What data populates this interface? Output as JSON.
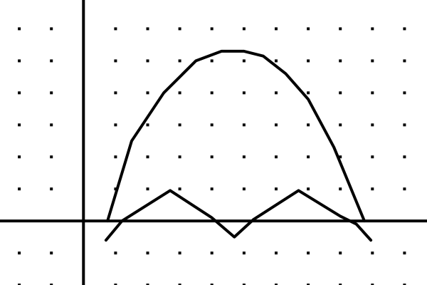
{
  "chart_data": {
    "type": "line",
    "title": "",
    "xlabel": "",
    "ylabel": "",
    "xlim": [
      -2.6,
      10.7
    ],
    "ylim": [
      -2,
      6.9
    ],
    "grid": "dots",
    "grid_step": 1,
    "background": "#ffffff",
    "ink_color": "#000000",
    "series": [
      {
        "curve": "upper-arch",
        "x": [
          0.75,
          1.5,
          2.5,
          3.5,
          4.3,
          5,
          5.6,
          6.3,
          7,
          7.8,
          8.5,
          8.75
        ],
        "y": [
          0,
          2.5,
          4.0,
          5.0,
          5.3,
          5.3,
          5.15,
          4.6,
          3.8,
          2.3,
          0.6,
          0
        ]
      },
      {
        "curve": "lower-zigzag",
        "x": [
          0.7,
          1.2,
          2.7,
          4.0,
          4.7,
          5.3,
          6.7,
          8.0,
          8.5,
          8.95
        ],
        "y": [
          -0.6,
          0.0,
          0.95,
          0.1,
          -0.5,
          0.05,
          0.95,
          0.15,
          -0.1,
          -0.6
        ]
      }
    ]
  }
}
